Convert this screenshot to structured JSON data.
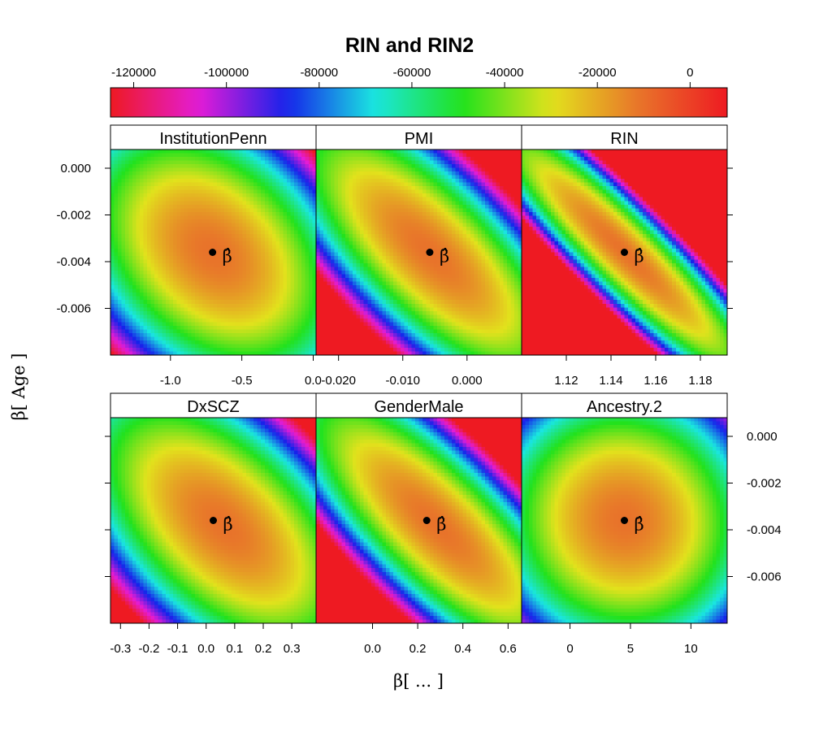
{
  "chart_data": {
    "type": "heatmap",
    "title": "RIN and RIN2",
    "xlabel": "β[ ... ]",
    "ylabel": "β[ Age ]",
    "estimate_label": "β̂",
    "colorbar": {
      "ticks": [
        -120000,
        -100000,
        -80000,
        -60000,
        -40000,
        -20000,
        0
      ],
      "tick_labels": [
        "-120000",
        "-100000",
        "-80000",
        "-60000",
        "-40000",
        "-20000",
        "0"
      ],
      "range": [
        -125000,
        8000
      ],
      "colors": [
        "#ee1a22",
        "#e41cd6",
        "#1622ea",
        "#1ae6e0",
        "#22e21c",
        "#e2e21c",
        "#e8742a",
        "#ee1a22"
      ]
    },
    "y_axis": {
      "ticks": [
        0.0,
        -0.002,
        -0.004,
        -0.006
      ],
      "tick_labels": [
        "0.000",
        "-0.002",
        "-0.004",
        "-0.006"
      ],
      "range": [
        -0.008,
        0.0008
      ]
    },
    "panels": [
      {
        "name": "InstitutionPenn",
        "xlim": [
          -1.42,
          0.02
        ],
        "estimate": {
          "x": -0.705,
          "y": -0.0036
        },
        "x_ticks": [
          -1.0,
          -0.5,
          0.0
        ],
        "x_tick_labels": [
          "-1.0",
          "-0.5",
          "0.0"
        ],
        "shape": {
          "corr": -0.35,
          "scale": 0.95,
          "shift": 0
        }
      },
      {
        "name": "PMI",
        "xlim": [
          -0.0235,
          0.0085
        ],
        "estimate": {
          "x": -0.0058,
          "y": -0.0036
        },
        "x_ticks": [
          -0.02,
          -0.01,
          0.0
        ],
        "x_tick_labels": [
          "-0.020",
          "-0.010",
          "0.000"
        ],
        "shape": {
          "corr": -0.75,
          "scale": 0.8,
          "shift": 0
        }
      },
      {
        "name": "RIN",
        "xlim": [
          1.1,
          1.192
        ],
        "estimate": {
          "x": 1.146,
          "y": -0.0036
        },
        "x_ticks": [
          1.12,
          1.14,
          1.16,
          1.18
        ],
        "x_tick_labels": [
          "1.12",
          "1.14",
          "1.16",
          "1.18"
        ],
        "shape": {
          "corr": -0.93,
          "scale": 0.85,
          "shift": 0
        }
      },
      {
        "name": "DxSCZ",
        "xlim": [
          -0.335,
          0.385
        ],
        "estimate": {
          "x": 0.025,
          "y": -0.0036
        },
        "x_ticks": [
          -0.3,
          -0.2,
          -0.1,
          0.0,
          0.1,
          0.2,
          0.3
        ],
        "x_tick_labels": [
          "-0.3",
          "-0.2",
          "-0.1",
          "0.0",
          "0.1",
          "0.2",
          "0.3"
        ],
        "shape": {
          "corr": -0.55,
          "scale": 0.85,
          "shift": 0.05
        }
      },
      {
        "name": "GenderMale",
        "xlim": [
          -0.25,
          0.66
        ],
        "estimate": {
          "x": 0.24,
          "y": -0.0036
        },
        "x_ticks": [
          0.0,
          0.2,
          0.4,
          0.6
        ],
        "x_tick_labels": [
          "0.0",
          "0.2",
          "0.4",
          "0.6"
        ],
        "shape": {
          "corr": -0.8,
          "scale": 0.78,
          "shift": 0.05
        }
      },
      {
        "name": "Ancestry.2",
        "xlim": [
          -4.0,
          13.0
        ],
        "estimate": {
          "x": 4.5,
          "y": -0.0036
        },
        "x_ticks": [
          0,
          5,
          10
        ],
        "x_tick_labels": [
          "0",
          "5",
          "10"
        ],
        "shape": {
          "corr": -0.05,
          "scale": 1.05,
          "shift": 0
        }
      }
    ]
  }
}
